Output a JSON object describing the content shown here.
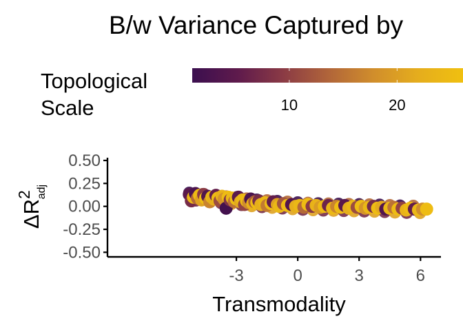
{
  "chart_data": {
    "type": "scatter",
    "title": "B/w Variance Captured by",
    "xlabel": "Transmodality",
    "ylabel": {
      "base": "ΔR",
      "sup": "2",
      "sub": "adj"
    },
    "xlim": [
      -9.3,
      7.0
    ],
    "ylim": [
      -0.55,
      0.53
    ],
    "xticks": [
      -3,
      0,
      3,
      6
    ],
    "xtick_labels": [
      "-3",
      "0",
      "3",
      "6"
    ],
    "yticks": [
      -0.5,
      -0.25,
      0,
      0.25,
      0.5
    ],
    "ytick_labels": [
      "-0.50",
      "-0.25",
      "0.00",
      "0.25",
      "0.50"
    ],
    "grid": false,
    "color_legend": {
      "title_lines": [
        "Topological",
        "Scale"
      ],
      "placement": "top",
      "range": [
        1,
        28
      ],
      "ticks": [
        10,
        20
      ],
      "tick_labels": [
        "10",
        "20"
      ],
      "colormap": [
        "#3b0f4f",
        "#5e1a4c",
        "#8a3a45",
        "#b0643a",
        "#d08d2c",
        "#e5ad1d",
        "#f0c010"
      ]
    },
    "series_trend": [
      {
        "x": -5.3,
        "y": 0.11
      },
      {
        "x": -4.0,
        "y": 0.08
      },
      {
        "x": -3.0,
        "y": 0.06
      },
      {
        "x": -2.0,
        "y": 0.035
      },
      {
        "x": -1.0,
        "y": 0.02
      },
      {
        "x": 0.0,
        "y": 0.005
      },
      {
        "x": 1.0,
        "y": -0.005
      },
      {
        "x": 2.0,
        "y": -0.01
      },
      {
        "x": 3.0,
        "y": -0.015
      },
      {
        "x": 4.0,
        "y": -0.02
      },
      {
        "x": 5.0,
        "y": -0.03
      },
      {
        "x": 6.3,
        "y": -0.035
      }
    ],
    "points": [
      {
        "x": -5.3,
        "y": 0.13,
        "s": 5
      },
      {
        "x": -5.2,
        "y": 0.06,
        "s": 8
      },
      {
        "x": -5.1,
        "y": 0.1,
        "s": 26
      },
      {
        "x": -5.0,
        "y": 0.14,
        "s": 3
      },
      {
        "x": -4.9,
        "y": 0.09,
        "s": 15
      },
      {
        "x": -4.8,
        "y": 0.12,
        "s": 27
      },
      {
        "x": -4.7,
        "y": 0.07,
        "s": 22
      },
      {
        "x": -4.6,
        "y": 0.13,
        "s": 10
      },
      {
        "x": -4.5,
        "y": 0.09,
        "s": 27
      },
      {
        "x": -4.4,
        "y": 0.11,
        "s": 4
      },
      {
        "x": -4.3,
        "y": 0.05,
        "s": 18
      },
      {
        "x": -4.2,
        "y": 0.1,
        "s": 26
      },
      {
        "x": -4.1,
        "y": 0.08,
        "s": 24
      },
      {
        "x": -4.0,
        "y": 0.12,
        "s": 6
      },
      {
        "x": -3.9,
        "y": 0.09,
        "s": 27
      },
      {
        "x": -3.8,
        "y": 0.06,
        "s": 12
      },
      {
        "x": -3.7,
        "y": 0.11,
        "s": 25
      },
      {
        "x": -3.6,
        "y": 0.08,
        "s": 20
      },
      {
        "x": -3.5,
        "y": -0.02,
        "s": 2
      },
      {
        "x": -3.4,
        "y": 0.1,
        "s": 27
      },
      {
        "x": -3.3,
        "y": 0.07,
        "s": 9
      },
      {
        "x": -3.2,
        "y": 0.09,
        "s": 26
      },
      {
        "x": -3.1,
        "y": 0.05,
        "s": 16
      },
      {
        "x": -3.0,
        "y": 0.08,
        "s": 27
      },
      {
        "x": -2.9,
        "y": 0.1,
        "s": 5
      },
      {
        "x": -2.8,
        "y": 0.05,
        "s": 23
      },
      {
        "x": -2.7,
        "y": 0.07,
        "s": 26
      },
      {
        "x": -2.6,
        "y": 0.02,
        "s": 11
      },
      {
        "x": -2.5,
        "y": 0.06,
        "s": 27
      },
      {
        "x": -2.4,
        "y": 0.04,
        "s": 19
      },
      {
        "x": -2.3,
        "y": 0.08,
        "s": 3
      },
      {
        "x": -2.2,
        "y": 0.03,
        "s": 25
      },
      {
        "x": -2.1,
        "y": 0.05,
        "s": 14
      },
      {
        "x": -2.0,
        "y": 0.04,
        "s": 27
      },
      {
        "x": -1.9,
        "y": 0.06,
        "s": 8
      },
      {
        "x": -1.8,
        "y": 0.02,
        "s": 24
      },
      {
        "x": -1.6,
        "y": 0.04,
        "s": 26
      },
      {
        "x": -1.5,
        "y": 0.01,
        "s": 17
      },
      {
        "x": -1.3,
        "y": 0.03,
        "s": 27
      },
      {
        "x": -1.2,
        "y": 0.05,
        "s": 6
      },
      {
        "x": -1.0,
        "y": 0.02,
        "s": 22
      },
      {
        "x": -0.9,
        "y": 0.0,
        "s": 26
      },
      {
        "x": -0.7,
        "y": 0.03,
        "s": 13
      },
      {
        "x": -0.5,
        "y": 0.01,
        "s": 27
      },
      {
        "x": -0.3,
        "y": 0.02,
        "s": 4
      },
      {
        "x": -0.1,
        "y": 0.0,
        "s": 24
      },
      {
        "x": 0.1,
        "y": 0.01,
        "s": 26
      },
      {
        "x": 0.3,
        "y": -0.01,
        "s": 15
      },
      {
        "x": 0.5,
        "y": 0.02,
        "s": 27
      },
      {
        "x": 0.7,
        "y": 0.0,
        "s": 10
      },
      {
        "x": 0.9,
        "y": 0.01,
        "s": 25
      },
      {
        "x": 1.1,
        "y": -0.01,
        "s": 21
      },
      {
        "x": 1.3,
        "y": 0.0,
        "s": 27
      },
      {
        "x": 1.5,
        "y": 0.01,
        "s": 7
      },
      {
        "x": 1.7,
        "y": -0.02,
        "s": 26
      },
      {
        "x": 1.9,
        "y": 0.0,
        "s": 18
      },
      {
        "x": 2.1,
        "y": -0.01,
        "s": 27
      },
      {
        "x": 2.3,
        "y": 0.01,
        "s": 5
      },
      {
        "x": 2.5,
        "y": -0.02,
        "s": 24
      },
      {
        "x": 2.7,
        "y": 0.0,
        "s": 26
      },
      {
        "x": 2.9,
        "y": -0.01,
        "s": 12
      },
      {
        "x": 3.1,
        "y": 0.0,
        "s": 27
      },
      {
        "x": 3.3,
        "y": -0.02,
        "s": 20
      },
      {
        "x": 3.5,
        "y": -0.01,
        "s": 26
      },
      {
        "x": 3.7,
        "y": 0.0,
        "s": 8
      },
      {
        "x": 3.9,
        "y": -0.02,
        "s": 27
      },
      {
        "x": 4.1,
        "y": -0.01,
        "s": 23
      },
      {
        "x": 4.3,
        "y": -0.03,
        "s": 4
      },
      {
        "x": 4.5,
        "y": -0.02,
        "s": 26
      },
      {
        "x": 4.7,
        "y": -0.01,
        "s": 16
      },
      {
        "x": 4.9,
        "y": -0.03,
        "s": 27
      },
      {
        "x": 5.1,
        "y": -0.02,
        "s": 11
      },
      {
        "x": 5.3,
        "y": -0.04,
        "s": 25
      },
      {
        "x": 5.5,
        "y": -0.02,
        "s": 27
      },
      {
        "x": 5.7,
        "y": -0.03,
        "s": 6
      },
      {
        "x": 5.9,
        "y": -0.04,
        "s": 26
      },
      {
        "x": 6.1,
        "y": -0.03,
        "s": 19
      },
      {
        "x": 6.3,
        "y": -0.03,
        "s": 27
      }
    ]
  }
}
